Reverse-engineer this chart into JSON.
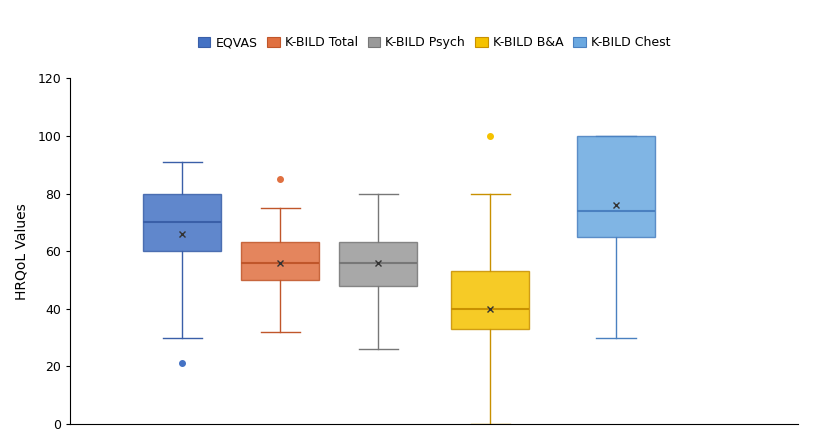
{
  "series": [
    {
      "name": "EQVAS",
      "color": "#3a5fa8",
      "face_color": "#4472c4",
      "whislo": 30,
      "q1": 60,
      "med": 70,
      "q3": 80,
      "whishi": 91,
      "mean": 66,
      "fliers": [
        21
      ]
    },
    {
      "name": "K-BILD Total",
      "color": "#c0562a",
      "face_color": "#e07040",
      "whislo": 32,
      "q1": 50,
      "med": 56,
      "q3": 63,
      "whishi": 75,
      "mean": 56,
      "fliers": [
        85
      ]
    },
    {
      "name": "K-BILD Psych",
      "color": "#777777",
      "face_color": "#999999",
      "whislo": 26,
      "q1": 48,
      "med": 56,
      "q3": 63,
      "whishi": 80,
      "mean": 56,
      "fliers": []
    },
    {
      "name": "K-BILD B&A",
      "color": "#c89000",
      "face_color": "#f5c200",
      "whislo": 0,
      "q1": 33,
      "med": 40,
      "q3": 53,
      "whishi": 80,
      "mean": 40,
      "fliers": [
        100
      ]
    },
    {
      "name": "K-BILD Chest",
      "color": "#4a80c0",
      "face_color": "#6aa8e0",
      "whislo": 30,
      "q1": 65,
      "med": 74,
      "q3": 100,
      "whishi": 100,
      "mean": 76,
      "fliers": []
    }
  ],
  "ylabel": "HRQoL Values",
  "ylim": [
    0,
    120
  ],
  "yticks": [
    0,
    20,
    40,
    60,
    80,
    100,
    120
  ],
  "background_color": "#ffffff",
  "box_width": 0.28,
  "positions": [
    1.0,
    1.35,
    1.7,
    2.1,
    2.55
  ]
}
